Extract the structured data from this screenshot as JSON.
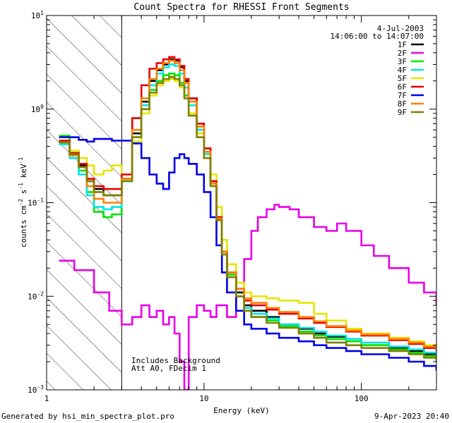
{
  "chart_data": {
    "type": "line",
    "title": "Count Spectra for RHESSI Front Segments",
    "xlabel": "Energy (keV)",
    "ylabel_parts": [
      "counts cm",
      "-2",
      " s",
      "-1",
      " keV",
      "-1"
    ],
    "xscale": "log",
    "yscale": "log",
    "xlim": [
      1,
      300
    ],
    "ylim": [
      0.001,
      10
    ],
    "x_ticks": [
      {
        "v": 1,
        "label": "1"
      },
      {
        "v": 10,
        "label": "10"
      },
      {
        "v": 100,
        "label": "100"
      }
    ],
    "y_ticks": [
      {
        "v": 0.001,
        "base": "10",
        "exp": "-3"
      },
      {
        "v": 0.01,
        "base": "10",
        "exp": "-2"
      },
      {
        "v": 0.1,
        "base": "10",
        "exp": "-1"
      },
      {
        "v": 1,
        "base": "10",
        "exp": "0"
      },
      {
        "v": 10,
        "base": "10",
        "exp": "1"
      }
    ],
    "hatched_region": [
      1,
      3
    ],
    "date": "4-Jul-2003",
    "time_range": "14:06:00 to 14:07:00",
    "annotations": [
      "Includes Background",
      "Att A0, FDecim 1"
    ],
    "footer_left": "Generated by hsi_min_spectra_plot.pro",
    "footer_right": "9-Apr-2023 20:40",
    "series": [
      {
        "name": "1F",
        "color": "#000000",
        "x": [
          1.2,
          1.4,
          1.6,
          1.8,
          2.0,
          2.3,
          2.6,
          3.0,
          3.5,
          4.0,
          4.5,
          5.0,
          5.5,
          6.0,
          6.5,
          7.0,
          7.5,
          8,
          9,
          10,
          11,
          12,
          13,
          14,
          16,
          18,
          20,
          25,
          30,
          40,
          50,
          60,
          80,
          100,
          150,
          200,
          250,
          300
        ],
        "y": [
          0.46,
          0.33,
          0.25,
          0.17,
          0.14,
          0.12,
          0.12,
          0.18,
          0.55,
          1.2,
          2.0,
          2.6,
          3.0,
          3.4,
          3.3,
          2.8,
          2.0,
          1.3,
          0.7,
          0.38,
          0.17,
          0.07,
          0.03,
          0.018,
          0.011,
          0.008,
          0.007,
          0.006,
          0.005,
          0.0045,
          0.004,
          0.0037,
          0.0035,
          0.003,
          0.0028,
          0.0026,
          0.0024,
          0.0022
        ]
      },
      {
        "name": "2F",
        "color": "#e600e6",
        "x": [
          1.2,
          1.5,
          2.0,
          2.5,
          3.0,
          3.5,
          4.0,
          4.5,
          5.0,
          5.5,
          6.0,
          6.5,
          7.0,
          7.5,
          8,
          9,
          10,
          11,
          12,
          14,
          16,
          18,
          20,
          22,
          25,
          28,
          30,
          35,
          40,
          50,
          60,
          70,
          80,
          100,
          120,
          150,
          200,
          250,
          300
        ],
        "y": [
          0.024,
          0.019,
          0.011,
          0.007,
          0.005,
          0.006,
          0.008,
          0.006,
          0.007,
          0.005,
          0.006,
          0.004,
          0.002,
          0.001,
          0.006,
          0.008,
          0.007,
          0.006,
          0.008,
          0.006,
          0.012,
          0.025,
          0.05,
          0.07,
          0.085,
          0.095,
          0.09,
          0.085,
          0.07,
          0.055,
          0.05,
          0.06,
          0.05,
          0.035,
          0.027,
          0.02,
          0.014,
          0.011,
          0.008
        ]
      },
      {
        "name": "3F",
        "color": "#00e600",
        "x": [
          1.2,
          1.4,
          1.6,
          1.8,
          2.0,
          2.3,
          2.6,
          3.0,
          3.5,
          4.0,
          4.5,
          5.0,
          5.5,
          6.0,
          6.5,
          7.0,
          7.5,
          8,
          9,
          10,
          11,
          12,
          13,
          14,
          16,
          18,
          20,
          25,
          30,
          40,
          50,
          60,
          80,
          100,
          150,
          200,
          250,
          300
        ],
        "y": [
          0.52,
          0.33,
          0.22,
          0.13,
          0.08,
          0.07,
          0.075,
          0.17,
          0.5,
          1.0,
          1.6,
          2.0,
          2.3,
          2.4,
          2.3,
          1.9,
          1.4,
          0.9,
          0.55,
          0.35,
          0.17,
          0.07,
          0.03,
          0.017,
          0.01,
          0.007,
          0.006,
          0.0055,
          0.0048,
          0.0042,
          0.0038,
          0.0035,
          0.0033,
          0.003,
          0.0027,
          0.0025,
          0.0023,
          0.0021
        ]
      },
      {
        "name": "4F",
        "color": "#00e6e6",
        "x": [
          1.2,
          1.4,
          1.6,
          1.8,
          2.0,
          2.3,
          2.6,
          3.0,
          3.5,
          4.0,
          4.5,
          5.0,
          5.5,
          6.0,
          6.5,
          7.0,
          7.5,
          8,
          9,
          10,
          11,
          12,
          13,
          14,
          16,
          18,
          20,
          25,
          30,
          40,
          50,
          60,
          80,
          100,
          150,
          200,
          250,
          300
        ],
        "y": [
          0.42,
          0.3,
          0.2,
          0.12,
          0.09,
          0.085,
          0.09,
          0.17,
          0.5,
          1.1,
          1.8,
          2.4,
          2.8,
          3.0,
          2.9,
          2.4,
          1.7,
          1.1,
          0.6,
          0.33,
          0.16,
          0.065,
          0.028,
          0.016,
          0.01,
          0.0075,
          0.0065,
          0.0058,
          0.005,
          0.0046,
          0.0042,
          0.0038,
          0.0035,
          0.0032,
          0.0029,
          0.0027,
          0.0025,
          0.0023
        ]
      },
      {
        "name": "5F",
        "color": "#e6e600",
        "x": [
          1.2,
          1.4,
          1.6,
          1.8,
          2.0,
          2.3,
          2.6,
          3.0,
          3.5,
          4.0,
          4.5,
          5.0,
          5.5,
          6.0,
          6.5,
          7.0,
          7.5,
          8,
          9,
          10,
          11,
          12,
          13,
          14,
          16,
          18,
          20,
          25,
          30,
          40,
          50,
          60,
          80,
          100,
          150,
          200,
          250,
          300
        ],
        "y": [
          0.46,
          0.36,
          0.3,
          0.25,
          0.2,
          0.22,
          0.25,
          0.2,
          0.45,
          0.9,
          1.4,
          1.8,
          2.0,
          2.1,
          2.0,
          1.7,
          1.3,
          0.9,
          0.55,
          0.38,
          0.2,
          0.09,
          0.04,
          0.022,
          0.014,
          0.011,
          0.01,
          0.0095,
          0.009,
          0.0085,
          0.0065,
          0.0055,
          0.0045,
          0.004,
          0.0036,
          0.0033,
          0.003,
          0.0028
        ]
      },
      {
        "name": "6F",
        "color": "#e60000",
        "x": [
          1.2,
          1.4,
          1.6,
          1.8,
          2.0,
          2.3,
          2.6,
          3.0,
          3.5,
          4.0,
          4.5,
          5.0,
          5.5,
          6.0,
          6.5,
          7.0,
          7.5,
          8,
          9,
          10,
          11,
          12,
          13,
          14,
          16,
          18,
          20,
          25,
          30,
          40,
          50,
          60,
          80,
          100,
          150,
          200,
          250,
          300
        ],
        "y": [
          0.46,
          0.34,
          0.26,
          0.18,
          0.15,
          0.14,
          0.14,
          0.2,
          0.8,
          1.8,
          2.7,
          3.1,
          3.4,
          3.6,
          3.4,
          2.9,
          2.1,
          1.3,
          0.7,
          0.38,
          0.17,
          0.07,
          0.03,
          0.018,
          0.012,
          0.009,
          0.008,
          0.0072,
          0.0065,
          0.0058,
          0.0052,
          0.0047,
          0.0042,
          0.0038,
          0.0034,
          0.0031,
          0.0028,
          0.0026
        ]
      },
      {
        "name": "7F",
        "color": "#0000e6",
        "x": [
          1.2,
          1.4,
          1.6,
          1.8,
          2.0,
          2.3,
          2.6,
          3.0,
          3.5,
          4.0,
          4.5,
          5.0,
          5.5,
          6.0,
          6.5,
          7.0,
          7.5,
          8,
          9,
          10,
          11,
          12,
          13,
          14,
          16,
          18,
          20,
          25,
          30,
          40,
          50,
          60,
          80,
          100,
          150,
          200,
          250,
          300
        ],
        "y": [
          0.5,
          0.5,
          0.47,
          0.45,
          0.48,
          0.48,
          0.46,
          0.46,
          0.43,
          0.3,
          0.2,
          0.16,
          0.14,
          0.21,
          0.3,
          0.33,
          0.3,
          0.26,
          0.2,
          0.13,
          0.07,
          0.035,
          0.018,
          0.011,
          0.007,
          0.005,
          0.0045,
          0.004,
          0.0036,
          0.0033,
          0.003,
          0.0028,
          0.0026,
          0.0024,
          0.0022,
          0.002,
          0.0018,
          0.0016
        ]
      },
      {
        "name": "8F",
        "color": "#ff8000",
        "x": [
          1.2,
          1.4,
          1.6,
          1.8,
          2.0,
          2.3,
          2.6,
          3.0,
          3.5,
          4.0,
          4.5,
          5.0,
          5.5,
          6.0,
          6.5,
          7.0,
          7.5,
          8,
          9,
          10,
          11,
          12,
          13,
          14,
          16,
          18,
          20,
          25,
          30,
          40,
          50,
          60,
          80,
          100,
          150,
          200,
          250,
          300
        ],
        "y": [
          0.44,
          0.32,
          0.24,
          0.15,
          0.11,
          0.1,
          0.1,
          0.18,
          0.6,
          1.3,
          2.1,
          2.7,
          3.1,
          3.3,
          3.1,
          2.6,
          1.9,
          1.2,
          0.65,
          0.35,
          0.16,
          0.068,
          0.03,
          0.018,
          0.012,
          0.0095,
          0.0085,
          0.0075,
          0.0068,
          0.006,
          0.0054,
          0.0048,
          0.0043,
          0.0039,
          0.0035,
          0.0032,
          0.0029,
          0.0027
        ]
      },
      {
        "name": "9F",
        "color": "#808000",
        "x": [
          1.2,
          1.4,
          1.6,
          1.8,
          2.0,
          2.3,
          2.6,
          3.0,
          3.5,
          4.0,
          4.5,
          5.0,
          5.5,
          6.0,
          6.5,
          7.0,
          7.5,
          8,
          9,
          10,
          11,
          12,
          13,
          14,
          16,
          18,
          20,
          25,
          30,
          40,
          50,
          60,
          80,
          100,
          150,
          200,
          250,
          300
        ],
        "y": [
          0.44,
          0.33,
          0.24,
          0.17,
          0.13,
          0.12,
          0.12,
          0.17,
          0.5,
          1.0,
          1.5,
          1.9,
          2.1,
          2.2,
          2.1,
          1.8,
          1.3,
          0.85,
          0.5,
          0.3,
          0.15,
          0.065,
          0.028,
          0.016,
          0.01,
          0.007,
          0.006,
          0.0052,
          0.0046,
          0.004,
          0.0036,
          0.0032,
          0.003,
          0.0028,
          0.0026,
          0.0024,
          0.0022,
          0.002
        ]
      }
    ]
  }
}
